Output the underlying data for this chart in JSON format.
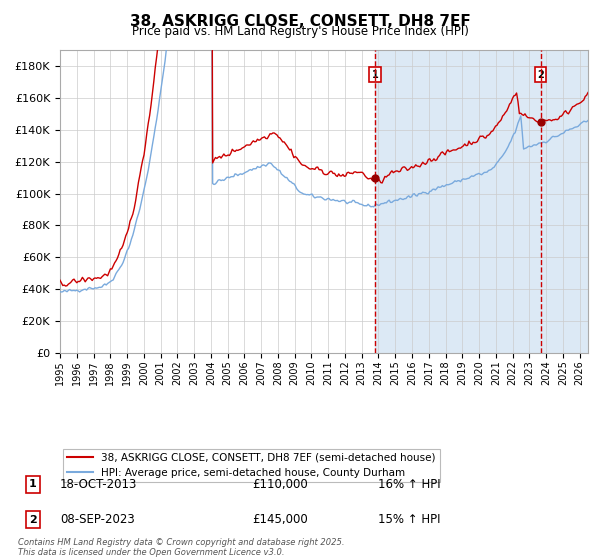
{
  "title": "38, ASKRIGG CLOSE, CONSETT, DH8 7EF",
  "subtitle": "Price paid vs. HM Land Registry's House Price Index (HPI)",
  "ylim": [
    0,
    190000
  ],
  "xlim_start": 1995.0,
  "xlim_end": 2026.5,
  "sale1_date": "18-OCT-2013",
  "sale1_price": "£110,000",
  "sale1_hpi": "16% ↑ HPI",
  "sale1_x": 2013.8,
  "sale1_y": 110000,
  "sale2_date": "08-SEP-2023",
  "sale2_price": "£145,000",
  "sale2_hpi": "15% ↑ HPI",
  "sale2_x": 2023.67,
  "sale2_y": 145000,
  "red_line_color": "#cc0000",
  "blue_line_color": "#7aaadd",
  "background_color": "#ffffff",
  "shaded_region_color": "#dce9f5",
  "grid_color": "#cccccc",
  "vline_color": "#cc0000",
  "legend_label_red": "38, ASKRIGG CLOSE, CONSETT, DH8 7EF (semi-detached house)",
  "legend_label_blue": "HPI: Average price, semi-detached house, County Durham",
  "footer_text": "Contains HM Land Registry data © Crown copyright and database right 2025.\nThis data is licensed under the Open Government Licence v3.0.",
  "marker_color": "#990000"
}
